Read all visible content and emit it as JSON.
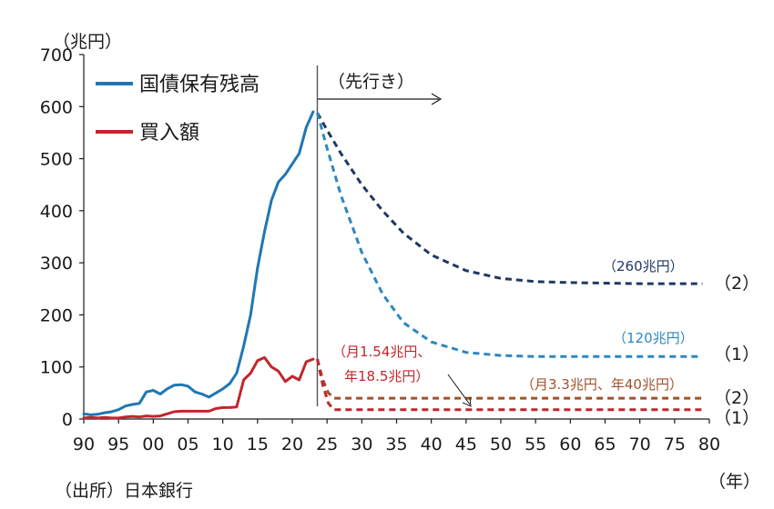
{
  "chart_data": {
    "type": "line",
    "y_unit": "（兆円）",
    "x_unit": "（年）",
    "source": "（出所）日本銀行",
    "ylim": [
      0,
      700
    ],
    "yticks": [
      0,
      100,
      200,
      300,
      400,
      500,
      600,
      700
    ],
    "xlim": [
      1990,
      2080
    ],
    "xtick_values": [
      1990,
      1995,
      2000,
      2005,
      2010,
      2015,
      2020,
      2025,
      2030,
      2035,
      2040,
      2045,
      2050,
      2055,
      2060,
      2065,
      2070,
      2075,
      2080
    ],
    "xtick_labels": [
      "90",
      "95",
      "00",
      "05",
      "10",
      "15",
      "20",
      "25",
      "30",
      "35",
      "40",
      "45",
      "50",
      "55",
      "60",
      "65",
      "70",
      "75",
      "80"
    ],
    "divider_x": 2023.6,
    "outlook_label": "（先行き）",
    "grid": false,
    "legend_position": "top-left",
    "legend": [
      {
        "name": "国債保有残高",
        "color": "#1f77b4"
      },
      {
        "name": "買入額",
        "color": "#c0272d"
      }
    ],
    "colors": {
      "holdings": "#1f77b4",
      "purchases": "#c0272d",
      "proj_holdings_2": "#1f3864",
      "proj_holdings_1": "#2e86c1",
      "proj_purchases_2": "#a0522d",
      "proj_purchases_1": "#c0272d",
      "axis": "#1a1a1a"
    },
    "series": [
      {
        "name": "国債保有残高",
        "style": "solid",
        "x": [
          1990,
          1991,
          1992,
          1993,
          1994,
          1995,
          1996,
          1997,
          1998,
          1999,
          2000,
          2001,
          2002,
          2003,
          2004,
          2005,
          2006,
          2007,
          2008,
          2009,
          2010,
          2011,
          2012,
          2013,
          2014,
          2015,
          2016,
          2017,
          2018,
          2019,
          2020,
          2021,
          2022,
          2023
        ],
        "values": [
          10,
          8,
          9,
          12,
          14,
          18,
          25,
          28,
          30,
          52,
          55,
          48,
          58,
          65,
          66,
          63,
          52,
          48,
          42,
          50,
          58,
          68,
          88,
          140,
          200,
          290,
          360,
          420,
          455,
          470,
          490,
          510,
          560,
          590
        ]
      },
      {
        "name": "買入額",
        "style": "solid",
        "x": [
          1990,
          1991,
          1992,
          1993,
          1994,
          1995,
          1996,
          1997,
          1998,
          1999,
          2000,
          2001,
          2002,
          2003,
          2004,
          2005,
          2006,
          2007,
          2008,
          2009,
          2010,
          2011,
          2012,
          2013,
          2014,
          2015,
          2016,
          2017,
          2018,
          2019,
          2020,
          2021,
          2022,
          2023
        ],
        "values": [
          2,
          3,
          2,
          3,
          2,
          2,
          4,
          5,
          4,
          6,
          5,
          6,
          10,
          14,
          15,
          15,
          15,
          15,
          15,
          20,
          22,
          22,
          23,
          75,
          88,
          112,
          118,
          100,
          92,
          72,
          82,
          75,
          110,
          115
        ]
      },
      {
        "name": "(2)",
        "style": "dashed",
        "x": [
          2023.6,
          2025,
          2027,
          2030,
          2033,
          2036,
          2040,
          2045,
          2050,
          2055,
          2060,
          2065,
          2070,
          2075,
          2079
        ],
        "values": [
          588,
          555,
          510,
          450,
          400,
          357,
          315,
          285,
          270,
          264,
          262,
          261,
          260,
          260,
          260
        ]
      },
      {
        "name": "(1)",
        "style": "dashed",
        "x": [
          2023.6,
          2025,
          2027,
          2030,
          2033,
          2036,
          2040,
          2045,
          2050,
          2055,
          2060,
          2065,
          2070,
          2075,
          2079
        ],
        "values": [
          588,
          520,
          430,
          320,
          240,
          185,
          148,
          128,
          122,
          120,
          120,
          120,
          120,
          120,
          120
        ]
      },
      {
        "name": "(2)",
        "style": "dashed",
        "x": [
          2023.6,
          2024.4,
          2025.2,
          2026,
          2030,
          2040,
          2050,
          2060,
          2070,
          2079
        ],
        "values": [
          115,
          75,
          50,
          40,
          40,
          40,
          40,
          40,
          40,
          40
        ]
      },
      {
        "name": "(1)",
        "style": "dashed",
        "x": [
          2023.6,
          2024.4,
          2025.2,
          2026,
          2030,
          2040,
          2050,
          2060,
          2070,
          2079
        ],
        "values": [
          115,
          65,
          30,
          18,
          18,
          18,
          18,
          18,
          18,
          18
        ]
      }
    ],
    "annotations": {
      "holdings_2": "（260兆円）",
      "holdings_1": "（120兆円）",
      "purchases_1_line1": "（月1.54兆円、",
      "purchases_1_line2": "年18.5兆円）",
      "purchases_2": "（月3.3兆円、年40兆円）",
      "scenario_2": "（2）",
      "scenario_1": "（1）"
    }
  }
}
